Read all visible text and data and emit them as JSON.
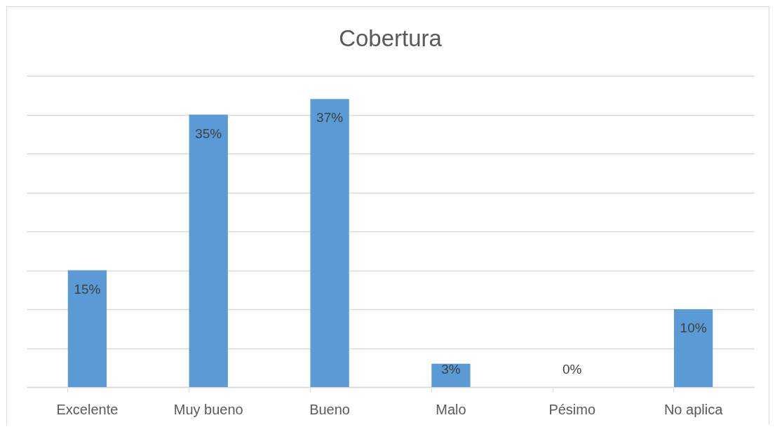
{
  "chart_data": {
    "type": "bar",
    "title": "Cobertura",
    "categories": [
      "Excelente",
      "Muy bueno",
      "Bueno",
      "Malo",
      "Pésimo",
      "No aplica"
    ],
    "values": [
      15,
      35,
      37,
      3,
      0,
      10
    ],
    "color": "#5b9bd5",
    "value_labels": [
      "15%",
      "35%",
      "37%",
      "3%",
      "0%",
      "10%"
    ],
    "ylim": [
      0,
      40
    ],
    "yticks": [
      {
        "value": 0,
        "label": null
      },
      {
        "value": 5,
        "label": null
      },
      {
        "value": 10,
        "label": null
      },
      {
        "value": 15,
        "label": null
      },
      {
        "value": 20,
        "label": null
      },
      {
        "value": 25,
        "label": null
      },
      {
        "value": 30,
        "label": null
      },
      {
        "value": 35,
        "label": null
      },
      {
        "value": 40,
        "label": null
      }
    ],
    "grid": "y",
    "tick_labels": "x"
  }
}
